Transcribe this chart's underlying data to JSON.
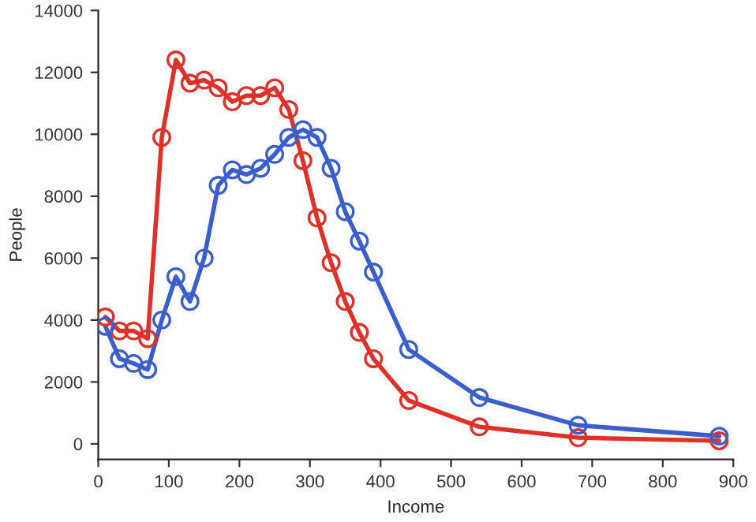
{
  "chart_data": {
    "type": "line",
    "xlabel": "Income",
    "ylabel": "People",
    "x": [
      10,
      30,
      50,
      70,
      90,
      110,
      130,
      150,
      170,
      190,
      210,
      230,
      250,
      270,
      290,
      310,
      330,
      350,
      370,
      390,
      440,
      540,
      680,
      880
    ],
    "series": [
      {
        "color": "#e0302a",
        "values": [
          4100,
          3650,
          3650,
          3400,
          9900,
          12400,
          11650,
          11750,
          11500,
          11050,
          11250,
          11250,
          11500,
          10800,
          9150,
          7300,
          5850,
          4600,
          3600,
          2750,
          1400,
          550,
          200,
          100
        ]
      },
      {
        "color": "#3a5fcd",
        "values": [
          3800,
          2750,
          2600,
          2400,
          4000,
          5400,
          4600,
          6000,
          8350,
          8850,
          8700,
          8900,
          9350,
          9900,
          10150,
          9900,
          8900,
          7500,
          6550,
          5550,
          3050,
          1500,
          600,
          250
        ]
      }
    ],
    "xlim": [
      0,
      900
    ],
    "ylim": [
      -500,
      14000
    ],
    "xticks": [
      0,
      100,
      200,
      300,
      400,
      500,
      600,
      700,
      800,
      900
    ],
    "yticks": [
      0,
      2000,
      4000,
      6000,
      8000,
      10000,
      12000,
      14000
    ],
    "grid": false,
    "marker": "circle",
    "line_style": "solid"
  }
}
